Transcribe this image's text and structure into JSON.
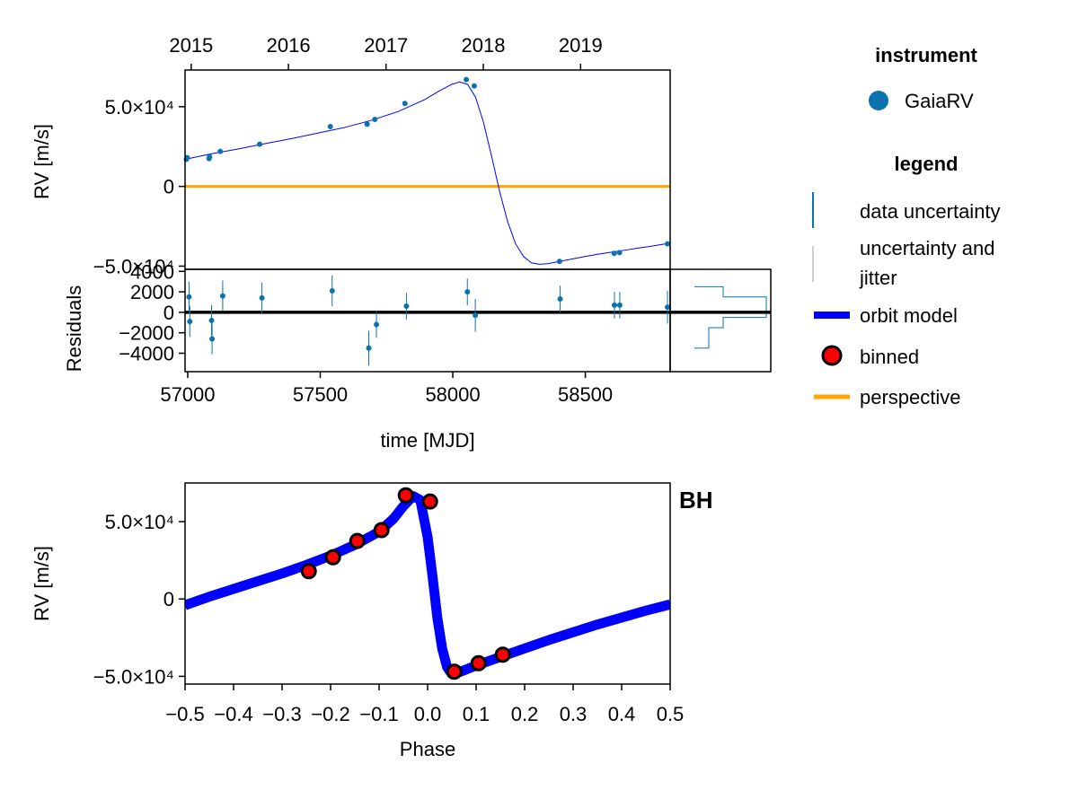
{
  "chart_data": [
    {
      "type": "scatter",
      "panel": "rv_vs_time",
      "ylabel": "RV [m/s]",
      "top_axis_ticks": [
        "2015",
        "2016",
        "2017",
        "2018",
        "2019"
      ],
      "top_axis_tick_mjd": [
        57023,
        57388,
        57754,
        58119,
        58484
      ],
      "xlim": [
        57000,
        58820
      ],
      "ylim": [
        -52000,
        73000
      ],
      "ytick_values": [
        -50000,
        0,
        50000
      ],
      "ytick_labels": [
        "−5.0×10⁴",
        "0",
        "5.0×10⁴"
      ],
      "series": [
        {
          "name": "GaiaRV",
          "color": "#0b72b0",
          "x": [
            57005,
            57008,
            57090,
            57092,
            57132,
            57280,
            57545,
            57683,
            57712,
            57825,
            58055,
            58085,
            58405,
            58610,
            58630,
            58810
          ],
          "y": [
            17000,
            18000,
            17500,
            18500,
            22000,
            26500,
            37500,
            39000,
            42000,
            52000,
            67000,
            63000,
            -47000,
            -42000,
            -41500,
            -36000
          ]
        },
        {
          "name": "orbit model",
          "color": "#0000ff",
          "x": [
            57000,
            57100,
            57200,
            57300,
            57400,
            57500,
            57600,
            57700,
            57800,
            57900,
            57950,
            58000,
            58030,
            58060,
            58090,
            58120,
            58150,
            58180,
            58210,
            58240,
            58270,
            58300,
            58330,
            58360,
            58400,
            58450,
            58500,
            58550,
            58600,
            58650,
            58700,
            58750,
            58820
          ],
          "y": [
            17000,
            20500,
            23500,
            26800,
            30000,
            33500,
            37000,
            41500,
            47000,
            54500,
            59500,
            64000,
            65500,
            64000,
            56000,
            40000,
            19000,
            -3000,
            -22000,
            -36000,
            -44000,
            -48000,
            -48800,
            -48500,
            -47200,
            -45600,
            -44000,
            -42500,
            -41200,
            -40000,
            -38700,
            -37500,
            -35500
          ]
        },
        {
          "name": "perspective",
          "color": "#ffa500",
          "x": [
            57000,
            58820
          ],
          "y": [
            0,
            0
          ]
        }
      ]
    },
    {
      "type": "scatter",
      "panel": "residuals",
      "xlabel": "time [MJD]",
      "ylabel": "Residuals",
      "xlim": [
        56990,
        58820
      ],
      "ylim": [
        -5800,
        4200
      ],
      "xtick_values": [
        57000,
        57500,
        58000,
        58500
      ],
      "xtick_labels": [
        "57000",
        "57500",
        "58000",
        "58500"
      ],
      "ytick_values": [
        -4000,
        -2000,
        0,
        2000,
        4000
      ],
      "ytick_labels": [
        "−4000",
        "−2000",
        "0",
        "2000",
        "4000"
      ],
      "series": [
        {
          "name": "GaiaRV",
          "color": "#0b72b0",
          "x": [
            57005,
            57008,
            57090,
            57092,
            57132,
            57280,
            57545,
            57683,
            57712,
            57825,
            58055,
            58085,
            58405,
            58610,
            58630,
            58810
          ],
          "y": [
            1500,
            -900,
            -800,
            -2600,
            1600,
            1400,
            2100,
            -3500,
            -1200,
            600,
            2000,
            -300,
            1300,
            700,
            700,
            500
          ],
          "err": [
            1500,
            1500,
            1500,
            1500,
            1500,
            1500,
            1500,
            1700,
            1300,
            1300,
            1300,
            1600,
            1300,
            1300,
            1300,
            1600
          ]
        }
      ],
      "histogram": {
        "bin_edges": [
          -3500,
          -2500,
          -1500,
          -500,
          500,
          1500,
          2500
        ],
        "counts": [
          1,
          1,
          2,
          5,
          5,
          2
        ]
      }
    },
    {
      "type": "scatter",
      "panel": "phase_folded",
      "xlabel": "Phase",
      "ylabel": "RV [m/s]",
      "xlim": [
        -0.5,
        0.5
      ],
      "ylim": [
        -55000,
        75000
      ],
      "xtick_values": [
        -0.5,
        -0.4,
        -0.3,
        -0.2,
        -0.1,
        0.0,
        0.1,
        0.2,
        0.3,
        0.4,
        0.5
      ],
      "xtick_labels": [
        "−0.5",
        "−0.4",
        "−0.3",
        "−0.2",
        "−0.1",
        "0.0",
        "0.1",
        "0.2",
        "0.3",
        "0.4",
        "0.5"
      ],
      "ytick_values": [
        -50000,
        0,
        50000
      ],
      "ytick_labels": [
        "−5.0×10⁴",
        "0",
        "5.0×10⁴"
      ],
      "annotation": "BH",
      "series": [
        {
          "name": "orbit model",
          "color": "#0000ff",
          "x": [
            -0.5,
            -0.45,
            -0.4,
            -0.35,
            -0.3,
            -0.25,
            -0.2,
            -0.15,
            -0.1,
            -0.07,
            -0.05,
            -0.03,
            -0.015,
            0.0,
            0.01,
            0.02,
            0.03,
            0.04,
            0.05,
            0.06,
            0.08,
            0.1,
            0.15,
            0.2,
            0.25,
            0.3,
            0.35,
            0.4,
            0.45,
            0.5
          ],
          "y": [
            -4000,
            1500,
            6500,
            11500,
            16500,
            22000,
            28000,
            35000,
            43500,
            52000,
            60000,
            66500,
            64000,
            40000,
            15000,
            -12000,
            -32000,
            -44000,
            -48500,
            -48000,
            -45500,
            -43000,
            -37500,
            -32000,
            -26500,
            -21500,
            -16500,
            -12000,
            -7500,
            -3500
          ]
        },
        {
          "name": "binned",
          "color": "#ff0000",
          "x": [
            -0.245,
            -0.195,
            -0.145,
            -0.095,
            -0.045,
            0.005,
            0.055,
            0.105,
            0.155
          ],
          "y": [
            18000,
            27000,
            37500,
            44500,
            67000,
            63000,
            -47000,
            -41500,
            -36000
          ]
        }
      ]
    }
  ],
  "legend": {
    "instrument_title": "instrument",
    "instrument_items": [
      {
        "label": "GaiaRV",
        "color": "#0b72b0",
        "marker": "dot"
      }
    ],
    "legend_title": "legend",
    "legend_items": [
      {
        "label": "data uncertainty",
        "color": "#0b72b0",
        "marker": "vline"
      },
      {
        "label": "uncertainty and",
        "label2": "jitter",
        "color": "#cfcfcf",
        "marker": "vline"
      },
      {
        "label": "orbit model",
        "color": "#0000ff",
        "marker": "thickline"
      },
      {
        "label": "binned",
        "color": "#ff0000",
        "marker": "circle"
      },
      {
        "label": "perspective",
        "color": "#ffa500",
        "marker": "line"
      }
    ]
  }
}
